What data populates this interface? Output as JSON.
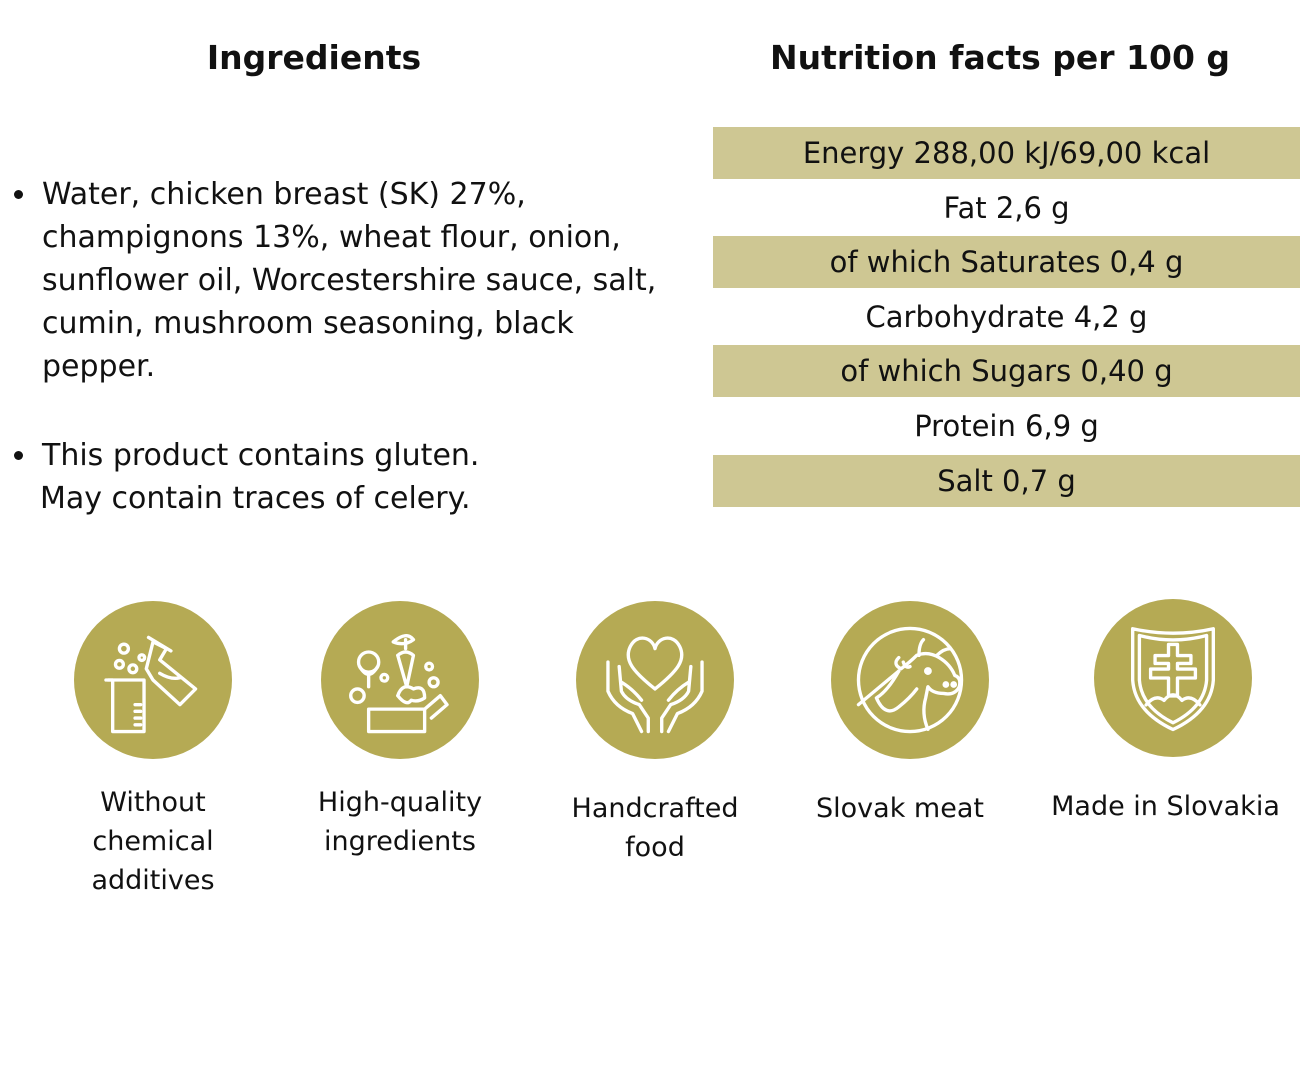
{
  "ingredients": {
    "title": "Ingredients",
    "list_text": "Water, chicken breast (SK) 27%, champignons 13%, wheat flour, onion, sunflower oil, Worcestershire sauce, salt, cumin, mushroom seasoning, black pepper.",
    "allergen_line1": "This product contains gluten.",
    "allergen_line2": "May contain traces of celery."
  },
  "nutrition": {
    "title": "Nutrition facts per 100 g",
    "rows": [
      "Energy 288,00 kJ/69,00 kcal",
      "Fat 2,6 g",
      "of which Saturates 0,4 g",
      "Carbohydrate 4,2 g",
      "of which Sugars 0,40 g",
      "Protein 6,9 g",
      "Salt 0,7 g"
    ],
    "row_color": "#cec793"
  },
  "badges": [
    {
      "icon": "lab-flask-icon",
      "label": "Without\nchemical\n additives"
    },
    {
      "icon": "vegetables-box-icon",
      "label": "High-quality\n ingredients"
    },
    {
      "icon": "heart-hands-icon",
      "label": "Handcrafted\nfood"
    },
    {
      "icon": "cow-icon",
      "label": "Slovak meat"
    },
    {
      "icon": "slovak-shield-icon",
      "label": "Made in Slovakia"
    }
  ],
  "colors": {
    "badge_circle": "#b5aa54",
    "icon_stroke": "#ffffff",
    "text": "#111111"
  }
}
